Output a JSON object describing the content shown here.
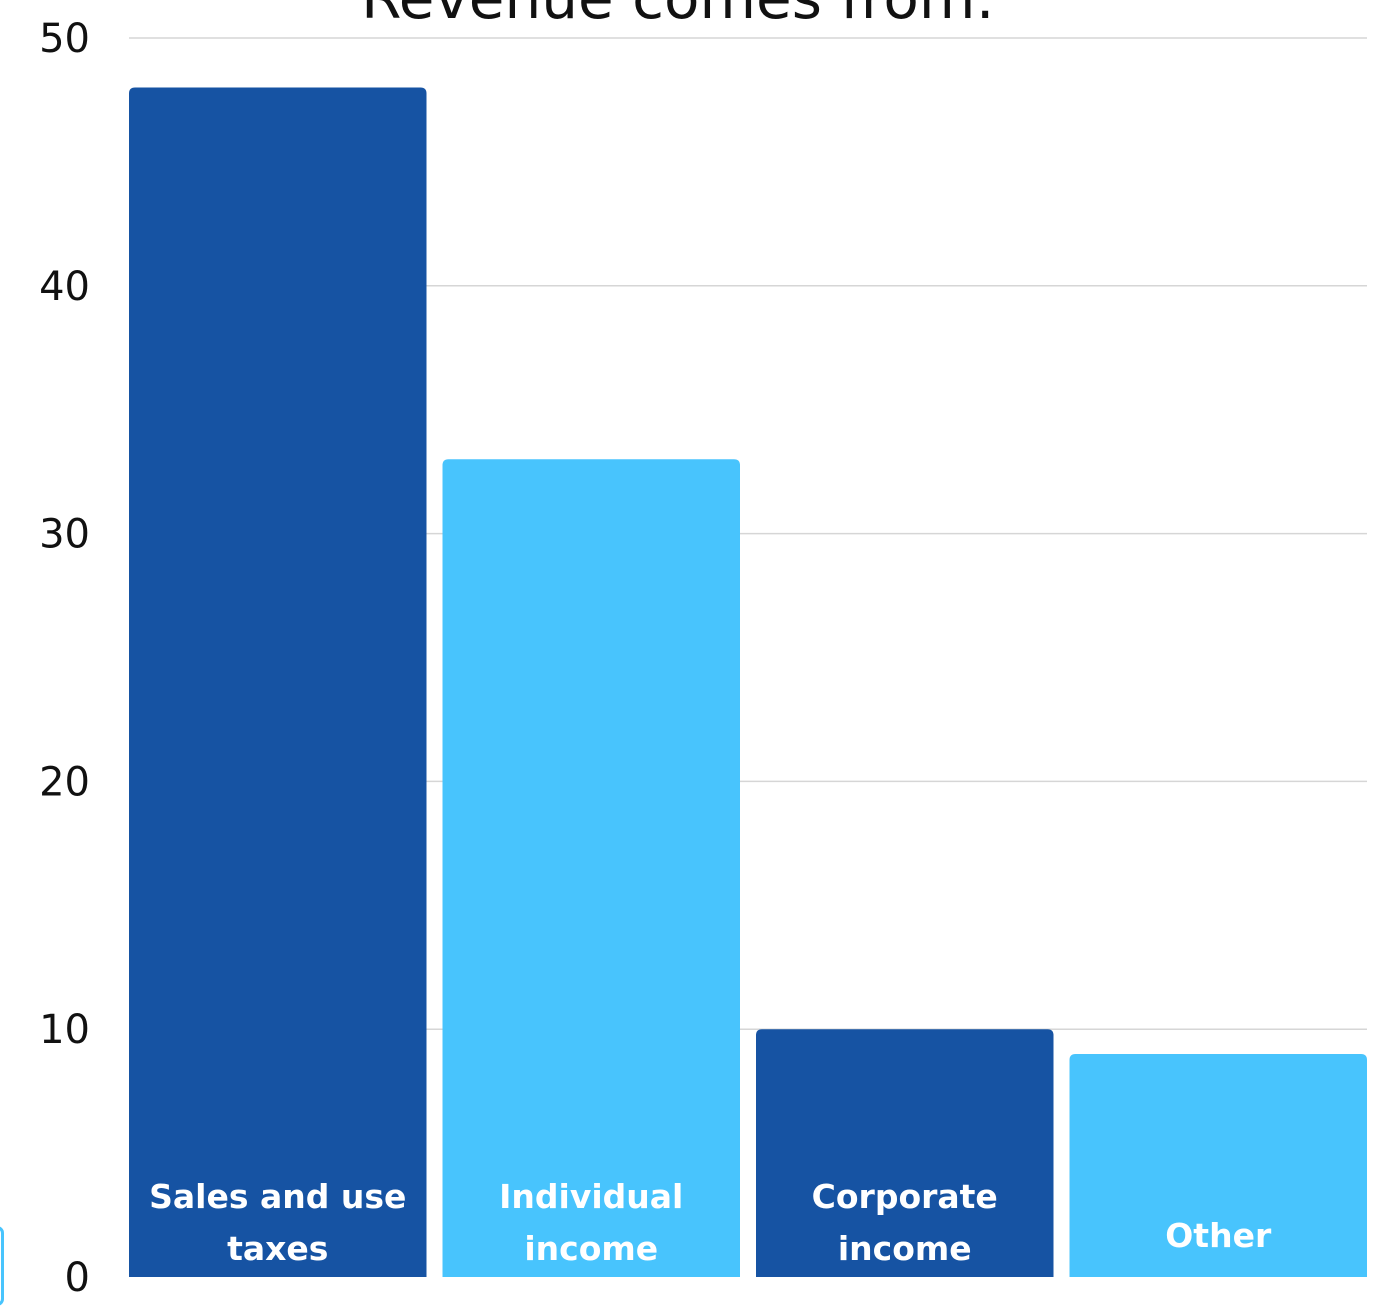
{
  "chart_data": {
    "type": "bar",
    "title": "Revenue comes from:",
    "categories": [
      "Sales and use taxes",
      "Individual income",
      "Corporate income",
      "Other"
    ],
    "category_label_lines": [
      [
        "Sales and use",
        "taxes"
      ],
      [
        "Individual",
        "income"
      ],
      [
        "Corporate",
        "income"
      ],
      [
        "Other"
      ]
    ],
    "values": [
      48,
      33,
      10,
      9
    ],
    "bar_colors": [
      "#1653a3",
      "#48c4fd",
      "#1653a3",
      "#48c4fd"
    ],
    "ylim": [
      0,
      50
    ],
    "yticks": [
      0,
      10,
      20,
      30,
      40,
      50
    ],
    "xlabel": "",
    "ylabel": "",
    "grid": true,
    "legend": "none"
  }
}
